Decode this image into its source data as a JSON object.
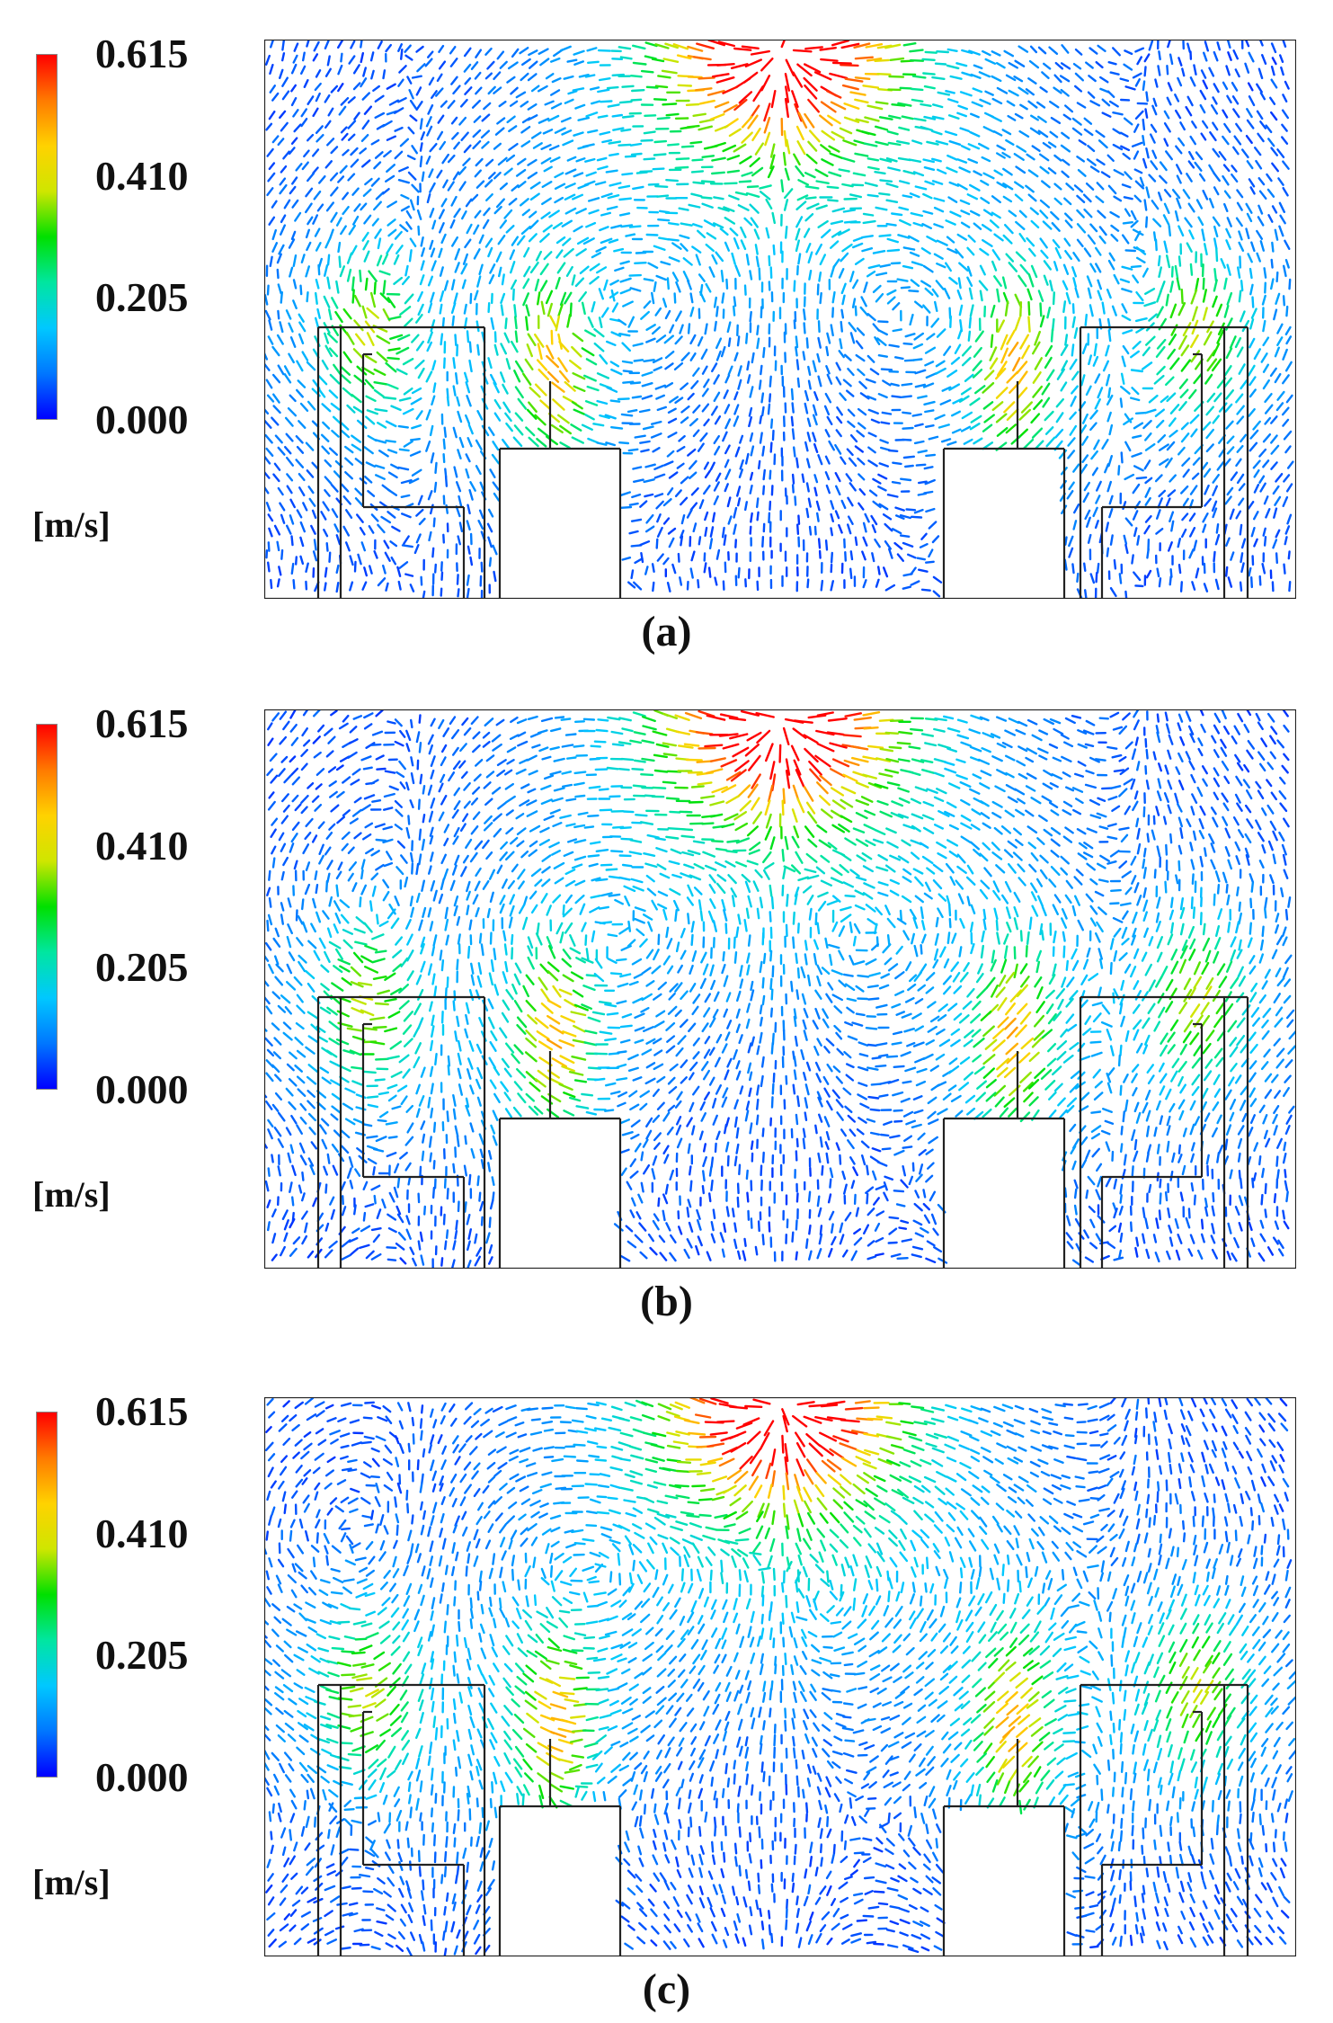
{
  "legend": {
    "ticks": [
      "0.615",
      "0.410",
      "0.205",
      "0.000"
    ],
    "unit": "[m/s]",
    "range": [
      0.0,
      0.615
    ],
    "colormap": [
      "#0000ff",
      "#0077ff",
      "#00c8ff",
      "#00e6a0",
      "#00e000",
      "#cfe600",
      "#ffd200",
      "#ff7a00",
      "#ff0000"
    ]
  },
  "panels": [
    {
      "caption": "(a)"
    },
    {
      "caption": "(b)"
    },
    {
      "caption": "(c)"
    }
  ],
  "colors": {
    "geometry_line": "#222222",
    "background": "#ffffff"
  }
}
